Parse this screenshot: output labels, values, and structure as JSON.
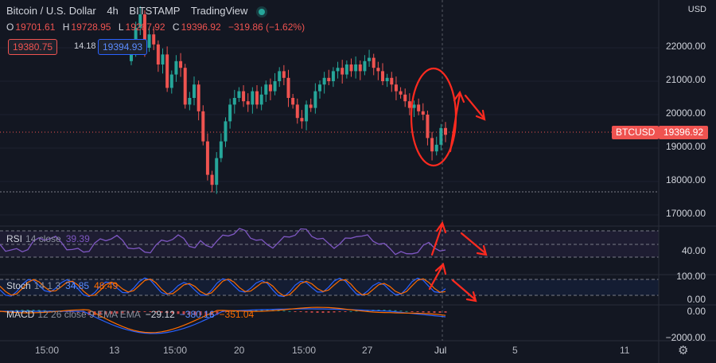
{
  "header": {
    "symbol_name": "Bitcoin / U.S. Dollar",
    "interval": "4h",
    "exchange": "BITSTAMP",
    "source": "TradingView",
    "status_icon": "live-dot-icon"
  },
  "ohlc": {
    "o_key": "O",
    "o_val": "19701.61",
    "h_key": "H",
    "h_val": "19728.95",
    "l_key": "L",
    "l_val": "19287.92",
    "c_key": "C",
    "c_val": "19396.92",
    "change": "−319.86 (−1.62%)"
  },
  "quote": {
    "bid": "19380.75",
    "spread": "14.18",
    "ask": "19394.93"
  },
  "price_axis": {
    "currency": "USD",
    "labels": [
      "22000.00",
      "21000.00",
      "20000.00",
      "19000.00",
      "18000.00",
      "17000.00"
    ],
    "symbol_tag": "BTCUSD",
    "last_price": "19396.92"
  },
  "rsi": {
    "name": "RSI",
    "params": "14 close",
    "value": "39.39",
    "axis_label": "40.00"
  },
  "stoch": {
    "name": "Stoch",
    "params": "14 1 3",
    "k_value": "34.85",
    "d_value": "48.49",
    "axis_top": "100.00",
    "axis_bottom": "0.00"
  },
  "macd": {
    "name": "MACD",
    "params": "12 26 close 9 EMA EMA",
    "hist": "−29.12",
    "macd": "−380.16",
    "signal": "−351.04",
    "axis_top": "0.00",
    "axis_bottom": "−2000.00"
  },
  "time_axis": [
    "15:00",
    "13",
    "15:00",
    "20",
    "15:00",
    "27",
    "Jul",
    "5",
    "11"
  ],
  "colors": {
    "background": "#131722",
    "up": "#26a69a",
    "down": "#ef5350",
    "rsi_line": "#7e57c2",
    "stoch_k": "#2962ff",
    "stoch_d": "#ff6d00",
    "annotation": "#ff2a1f"
  },
  "chart_data": {
    "type": "candlestick",
    "series_close": [
      21900,
      22600,
      23000,
      22000,
      22400,
      22100,
      21500,
      21800,
      20800,
      21200,
      21600,
      21400,
      20300,
      20500,
      20900,
      20100,
      19200,
      18200,
      17900,
      18700,
      19200,
      19800,
      20300,
      20500,
      20700,
      20400,
      20300,
      20700,
      20300,
      20600,
      20900,
      20700,
      21000,
      21300,
      21100,
      20500,
      20300,
      19900,
      19800,
      20300,
      20200,
      20700,
      20900,
      21100,
      21000,
      21300,
      21400,
      21200,
      21500,
      21300,
      21500,
      21300,
      21600,
      21700,
      21400,
      21300,
      21000,
      21100,
      20900,
      20700,
      20600,
      20400,
      20200,
      20300,
      20100,
      20000,
      19300,
      18900,
      19100,
      19600,
      19397
    ],
    "price_range": [
      16500,
      23000
    ],
    "rsi_range": [
      20,
      80
    ],
    "stoch_range": [
      0,
      100
    ],
    "macd_range": [
      -2200,
      400
    ]
  }
}
